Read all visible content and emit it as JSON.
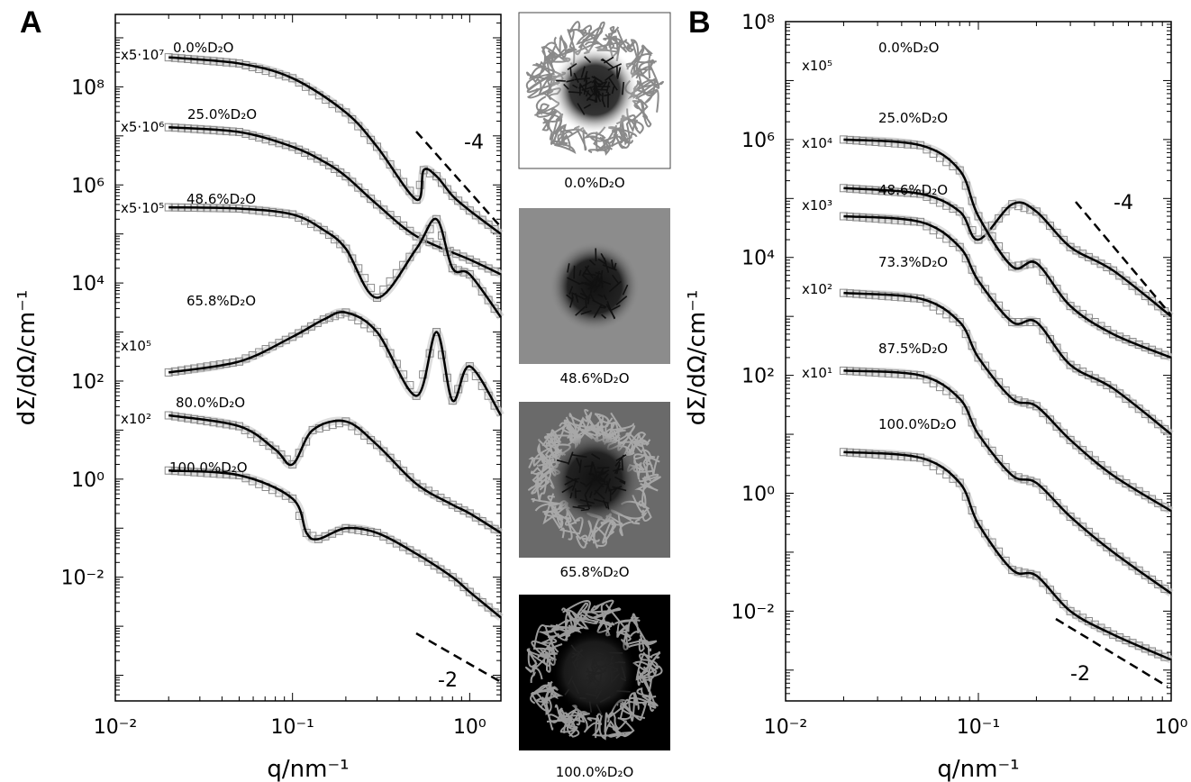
{
  "panels": {
    "A": {
      "letter": "A",
      "x_label": "q/nm⁻¹",
      "y_label": "dΣ/dΩ/cm⁻¹",
      "x_ticks": [
        "10⁻²",
        "10⁻¹",
        "10⁰"
      ],
      "y_ticks": [
        "10⁻²",
        "10⁰",
        "10²",
        "10⁴",
        "10⁶",
        "10⁸"
      ],
      "slope_labels": [
        "-4",
        "-2"
      ]
    },
    "B": {
      "letter": "B",
      "x_label": "q/nm⁻¹",
      "y_label": "dΣ/dΩ/cm⁻¹",
      "x_ticks": [
        "10⁻²",
        "10⁻¹",
        "10⁰"
      ],
      "y_ticks": [
        "10⁻²",
        "10⁰",
        "10²",
        "10⁴",
        "10⁶",
        "10⁸"
      ],
      "slope_labels": [
        "-4",
        "-2"
      ]
    }
  },
  "insets": [
    {
      "caption": "0.0%D₂O",
      "background": "#ffffff",
      "shell": "#8a8a8a",
      "core": "#111111"
    },
    {
      "caption": "48.6%D₂O",
      "background": "#8c8c8c",
      "shell": "none",
      "core": "#111111"
    },
    {
      "caption": "65.8%D₂O",
      "background": "#6a6a6a",
      "shell": "#a8a8a8",
      "core": "#111111"
    },
    {
      "caption": "100.0%D₂O",
      "background": "#000000",
      "shell": "#9a9a9a",
      "core": "#222222"
    }
  ],
  "chart_data": [
    {
      "type": "scatter",
      "panel": "A",
      "x_scale": "log",
      "y_scale": "log",
      "xlim": [
        0.01,
        1.5
      ],
      "ylim": [
        3e-05,
        3000000000
      ],
      "xlabel": "q/nm⁻¹",
      "ylabel": "dΣ/dΩ/cm⁻¹",
      "series": [
        {
          "name": "0.0%D₂O",
          "scale_label": "x5·10⁷",
          "x": [
            0.02,
            0.05,
            0.1,
            0.2,
            0.3,
            0.5,
            0.55,
            0.65,
            0.8,
            1.0,
            1.5
          ],
          "y": [
            400000000,
            300000000,
            150000000,
            30000000,
            6000000,
            500000,
            2000000,
            1500000,
            600000,
            300000,
            100000
          ]
        },
        {
          "name": "25.0%D₂O",
          "scale_label": "x5·10⁶",
          "x": [
            0.02,
            0.05,
            0.1,
            0.15,
            0.2,
            0.3,
            0.5,
            1.0,
            1.5
          ],
          "y": [
            15000000,
            12000000,
            6000000,
            3000000,
            1500000,
            400000,
            90000,
            30000,
            15000
          ]
        },
        {
          "name": "48.6%D₂O",
          "scale_label": "x5·10⁵",
          "x": [
            0.02,
            0.05,
            0.1,
            0.15,
            0.2,
            0.3,
            0.5,
            0.65,
            0.8,
            1.0,
            1.5
          ],
          "y": [
            350000,
            330000,
            250000,
            120000,
            50000,
            5000,
            50000,
            200000,
            20000,
            15000,
            2000
          ]
        },
        {
          "name": "65.8%D₂O",
          "scale_label": "x10⁵",
          "x": [
            0.02,
            0.05,
            0.1,
            0.15,
            0.2,
            0.3,
            0.5,
            0.65,
            0.8,
            1.0,
            1.5
          ],
          "y": [
            150,
            250,
            800,
            1800,
            2500,
            1000,
            50,
            1000,
            40,
            200,
            20
          ]
        },
        {
          "name": "80.0%D₂O",
          "scale_label": "x10²",
          "x": [
            0.02,
            0.05,
            0.08,
            0.1,
            0.13,
            0.2,
            0.3,
            0.5,
            0.8,
            1.0,
            1.5
          ],
          "y": [
            20,
            12,
            4,
            2,
            10,
            15,
            5,
            0.8,
            0.3,
            0.2,
            0.08
          ]
        },
        {
          "name": "100.0%D₂O",
          "scale_label": "",
          "x": [
            0.02,
            0.05,
            0.1,
            0.12,
            0.14,
            0.2,
            0.3,
            0.5,
            0.8,
            1.0,
            1.5
          ],
          "y": [
            1.5,
            1.2,
            0.4,
            0.08,
            0.06,
            0.1,
            0.08,
            0.03,
            0.01,
            0.005,
            0.0015
          ]
        }
      ]
    },
    {
      "type": "scatter",
      "panel": "B",
      "x_scale": "log",
      "y_scale": "log",
      "xlim": [
        0.01,
        1.0
      ],
      "ylim": [
        0.0003,
        100000000
      ],
      "xlabel": "q/nm⁻¹",
      "ylabel": "dΣ/dΩ/cm⁻¹",
      "series": [
        {
          "name": "0.0%D₂O",
          "scale_label": "x10⁵",
          "x": [
            0.02,
            0.05,
            0.08,
            0.1,
            0.15,
            0.2,
            0.3,
            0.5,
            1.0
          ],
          "y": [
            150000,
            120000,
            60000,
            20000,
            80000,
            60000,
            15000,
            6000,
            1000
          ]
        },
        {
          "name": "25.0%D₂O",
          "scale_label": "x10⁴",
          "x": [
            0.02,
            0.05,
            0.08,
            0.1,
            0.15,
            0.2,
            0.3,
            0.5,
            1.0
          ],
          "y": [
            1000000,
            800000,
            300000,
            50000,
            7000,
            8000,
            1500,
            500,
            200
          ]
        },
        {
          "name": "48.6%D₂O",
          "scale_label": "x10³",
          "x": [
            0.02,
            0.05,
            0.08,
            0.1,
            0.15,
            0.2,
            0.3,
            0.5,
            1.0
          ],
          "y": [
            50000,
            40000,
            15000,
            4000,
            800,
            800,
            150,
            60,
            10
          ]
        },
        {
          "name": "73.3%D₂O",
          "scale_label": "x10²",
          "x": [
            0.02,
            0.05,
            0.08,
            0.1,
            0.15,
            0.2,
            0.3,
            0.5,
            1.0
          ],
          "y": [
            2500,
            2000,
            800,
            200,
            40,
            30,
            8,
            2,
            0.5
          ]
        },
        {
          "name": "87.5%D₂O",
          "scale_label": "x10¹",
          "x": [
            0.02,
            0.05,
            0.08,
            0.1,
            0.15,
            0.2,
            0.3,
            0.5,
            1.0
          ],
          "y": [
            120,
            100,
            40,
            10,
            2,
            1.5,
            0.4,
            0.1,
            0.02
          ]
        },
        {
          "name": "100.0%D₂O",
          "scale_label": "",
          "x": [
            0.02,
            0.05,
            0.08,
            0.1,
            0.15,
            0.2,
            0.3,
            0.5,
            1.0
          ],
          "y": [
            5,
            4,
            1.5,
            0.3,
            0.05,
            0.04,
            0.01,
            0.004,
            0.0015
          ]
        }
      ]
    }
  ]
}
